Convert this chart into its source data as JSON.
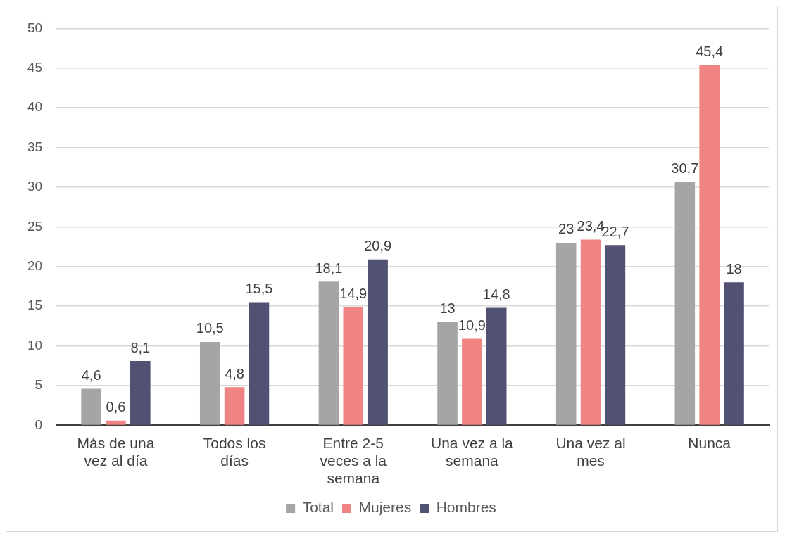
{
  "chart_data": {
    "type": "bar",
    "categories": [
      "Más de una vez al día",
      "Todos los días",
      "Entre 2-5 veces a la semana",
      "Una vez a la semana",
      "Una vez al mes",
      "Nunca"
    ],
    "series": [
      {
        "name": "Total",
        "color": "#a5a5a5",
        "values": [
          4.6,
          10.5,
          18.1,
          13,
          23,
          30.7
        ],
        "value_labels": [
          "4,6",
          "10,5",
          "18,1",
          "13",
          "23",
          "30,7"
        ]
      },
      {
        "name": "Mujeres",
        "color": "#f08482",
        "values": [
          0.6,
          4.8,
          14.9,
          10.9,
          23.4,
          45.4
        ],
        "value_labels": [
          "0,6",
          "4,8",
          "14,9",
          "10,9",
          "23,4",
          "45,4"
        ]
      },
      {
        "name": "Hombres",
        "color": "#515174",
        "values": [
          8.1,
          15.5,
          20.9,
          14.8,
          22.7,
          18
        ],
        "value_labels": [
          "8,1",
          "15,5",
          "20,9",
          "14,8",
          "22,7",
          "18"
        ]
      }
    ],
    "ylim": [
      0,
      50
    ],
    "yticks": [
      0,
      5,
      10,
      15,
      20,
      25,
      30,
      35,
      40,
      45,
      50
    ],
    "grid": "y",
    "legend": "bottom"
  }
}
